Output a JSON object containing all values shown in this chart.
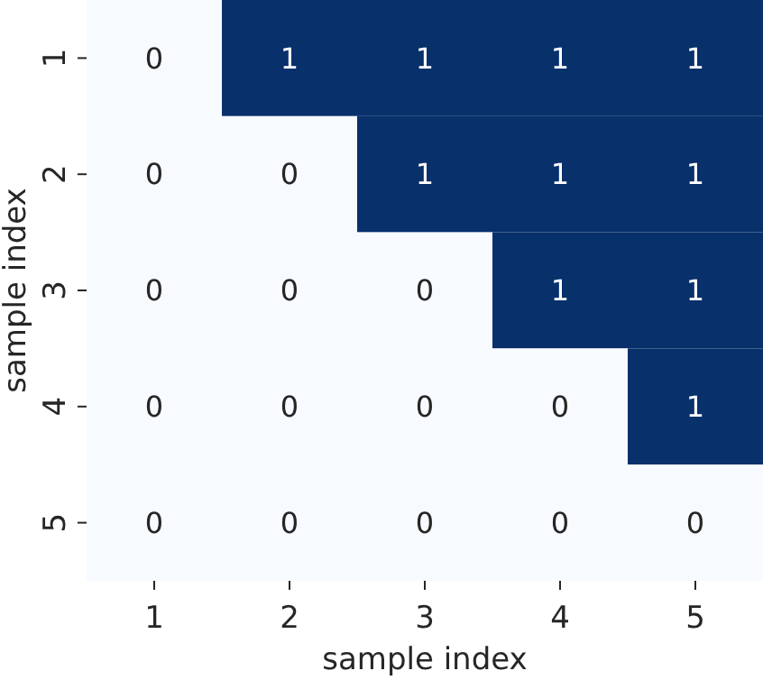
{
  "chart_data": {
    "type": "heatmap",
    "xlabel": "sample index",
    "ylabel": "sample index",
    "categories": [
      "1",
      "2",
      "3",
      "4",
      "5"
    ],
    "y_categories": [
      "1",
      "2",
      "3",
      "4",
      "5"
    ],
    "cells": [
      [
        0,
        1,
        1,
        1,
        1
      ],
      [
        0,
        0,
        1,
        1,
        1
      ],
      [
        0,
        0,
        0,
        1,
        1
      ],
      [
        0,
        0,
        0,
        0,
        1
      ],
      [
        0,
        0,
        0,
        0,
        0
      ]
    ],
    "data_labels": true
  }
}
